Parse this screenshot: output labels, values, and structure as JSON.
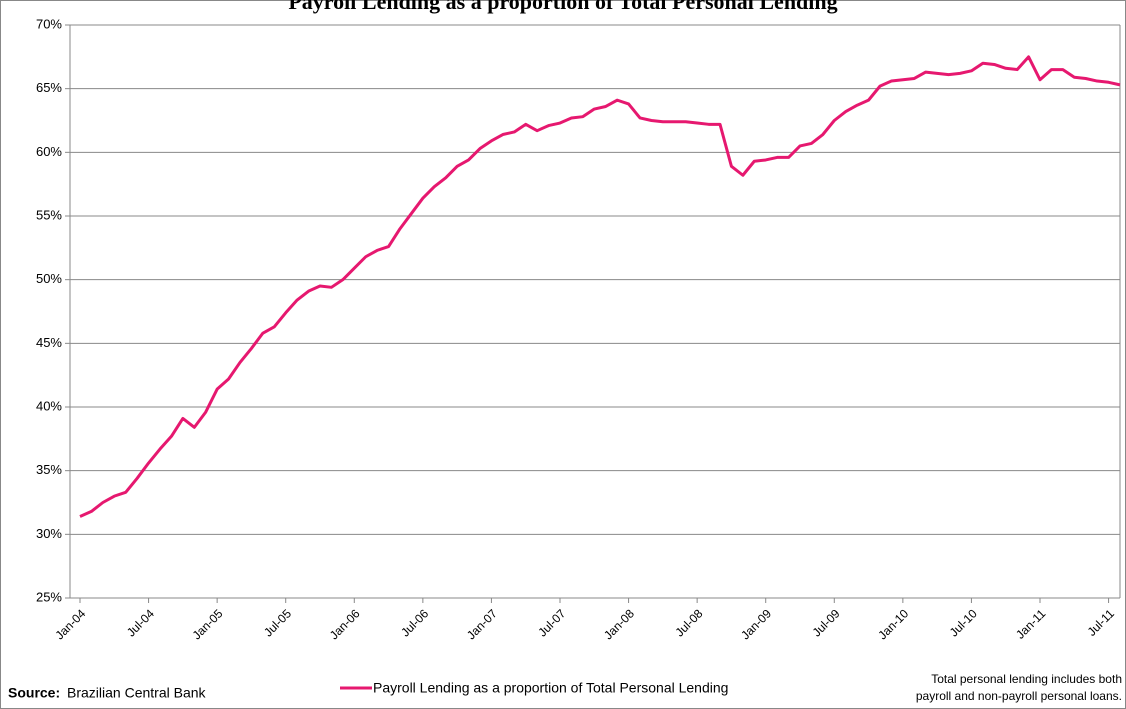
{
  "chart_data": {
    "type": "line",
    "title": "Payroll Lending as a proportion of Total Personal Lending",
    "categories": [
      "Jan-04",
      null,
      null,
      null,
      null,
      null,
      "Jul-04",
      null,
      null,
      null,
      null,
      null,
      "Jan-05",
      null,
      null,
      null,
      null,
      null,
      "Jul-05",
      null,
      null,
      null,
      null,
      null,
      "Jan-06",
      null,
      null,
      null,
      null,
      null,
      "Jul-06",
      null,
      null,
      null,
      null,
      null,
      "Jan-07",
      null,
      null,
      null,
      null,
      null,
      "Jul-07",
      null,
      null,
      null,
      null,
      null,
      "Jan-08",
      null,
      null,
      null,
      null,
      null,
      "Jul-08",
      null,
      null,
      null,
      null,
      null,
      "Jan-09",
      null,
      null,
      null,
      null,
      null,
      "Jul-09",
      null,
      null,
      null,
      null,
      null,
      "Jan-10",
      null,
      null,
      null,
      null,
      null,
      "Jul-10",
      null,
      null,
      null,
      null,
      null,
      "Jan-11",
      null,
      null,
      null,
      null,
      null,
      "Jul-11",
      null
    ],
    "series": [
      {
        "name": "Payroll Lending as a proportion of Total Personal Lending",
        "color": "#e6186f",
        "values": [
          31.4,
          31.8,
          32.5,
          33.0,
          33.3,
          34.4,
          35.6,
          36.7,
          37.7,
          39.1,
          38.4,
          39.6,
          41.4,
          42.2,
          43.5,
          44.6,
          45.8,
          46.3,
          47.4,
          48.4,
          49.1,
          49.5,
          49.4,
          50.0,
          50.9,
          51.8,
          52.3,
          52.6,
          54.0,
          55.2,
          56.4,
          57.3,
          58.0,
          58.9,
          59.4,
          60.3,
          60.9,
          61.4,
          61.6,
          62.2,
          61.7,
          62.1,
          62.3,
          62.7,
          62.8,
          63.4,
          63.6,
          64.1,
          63.8,
          62.7,
          62.5,
          62.4,
          62.4,
          62.4,
          62.3,
          62.2,
          62.2,
          58.9,
          58.2,
          59.3,
          59.4,
          59.6,
          59.6,
          60.5,
          60.7,
          61.4,
          62.5,
          63.2,
          63.7,
          64.1,
          65.2,
          65.6,
          65.7,
          65.8,
          66.3,
          66.2,
          66.1,
          66.2,
          66.4,
          67.0,
          66.9,
          66.6,
          66.5,
          67.5,
          65.7,
          66.5,
          66.5,
          65.9,
          65.8,
          65.6,
          65.5,
          65.3
        ]
      }
    ],
    "ylim": [
      25,
      70
    ],
    "yticks": [
      {
        "value": 25,
        "label": "25%"
      },
      {
        "value": 30,
        "label": "30%"
      },
      {
        "value": 35,
        "label": "35%"
      },
      {
        "value": 40,
        "label": "40%"
      },
      {
        "value": 45,
        "label": "45%"
      },
      {
        "value": 50,
        "label": "50%"
      },
      {
        "value": 55,
        "label": "55%"
      },
      {
        "value": 60,
        "label": "60%"
      },
      {
        "value": 65,
        "label": "65%"
      },
      {
        "value": 70,
        "label": "70%"
      }
    ],
    "grid": true,
    "source_label": "Source:",
    "source": "Brazilian Central Bank",
    "note": [
      "Total personal lending includes both",
      "payroll and non-payroll personal loans."
    ]
  }
}
